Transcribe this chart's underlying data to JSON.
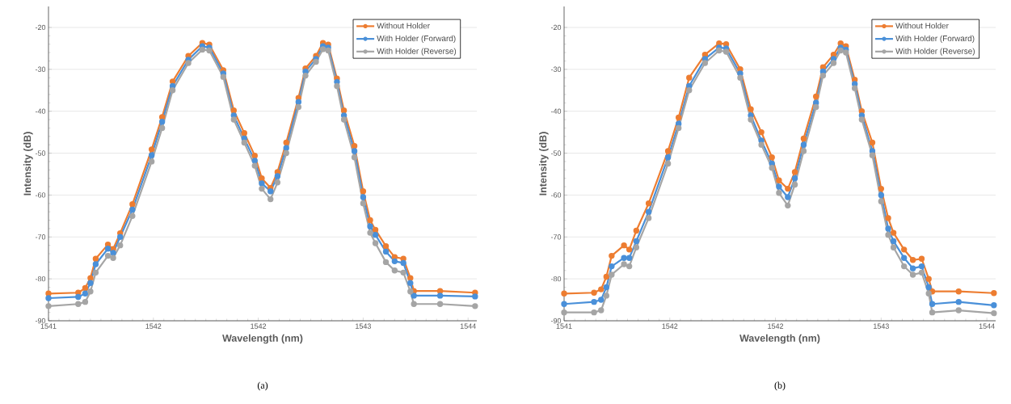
{
  "chart_data": [
    {
      "type": "line",
      "xlabel": "Wavelength (nm)",
      "ylabel": "Intensity (dB)",
      "annotations": [
        "(a)"
      ],
      "x": [
        1541.2,
        1541.37,
        1541.41,
        1541.44,
        1541.47,
        1541.54,
        1541.57,
        1541.61,
        1541.68,
        1541.79,
        1541.85,
        1541.91,
        1542.0,
        1542.08,
        1542.12,
        1542.2,
        1542.26,
        1542.32,
        1542.38,
        1542.42,
        1542.47,
        1542.51,
        1542.56,
        1542.63,
        1542.67,
        1542.73,
        1542.77,
        1542.8,
        1542.85,
        1542.89,
        1542.95,
        1543.0,
        1543.04,
        1543.07,
        1543.13,
        1543.18,
        1543.23,
        1543.27,
        1543.29,
        1543.44,
        1543.64
      ],
      "series": [
        {
          "name": "Without Holder",
          "color": "#ed7d31",
          "values": [
            -83.5,
            -83.3,
            -82.2,
            -79.8,
            -75.2,
            -71.8,
            -72.9,
            -69.1,
            -62.2,
            -49.1,
            -41.4,
            -32.9,
            -26.8,
            -23.7,
            -24.1,
            -30.2,
            -39.8,
            -45.2,
            -50.6,
            -56,
            -58.3,
            -54.5,
            -47.5,
            -36.8,
            -29.8,
            -26.8,
            -23.7,
            -24.1,
            -32.2,
            -39.8,
            -48.3,
            -59.1,
            -66,
            -68.3,
            -72.2,
            -74.8,
            -75.2,
            -79.8,
            -82.9,
            -82.9,
            -83.3
          ]
        },
        {
          "name": "With Holder (Forward)",
          "color": "#4a90d9",
          "values": [
            -84.6,
            -84.3,
            -83.5,
            -81,
            -76.5,
            -72.8,
            -73.8,
            -70,
            -63.5,
            -50.5,
            -42.5,
            -34,
            -27.7,
            -24.5,
            -24.8,
            -31,
            -41,
            -46.5,
            -51.8,
            -57.2,
            -59.1,
            -55.5,
            -48.8,
            -37.8,
            -30.5,
            -27.5,
            -24.5,
            -24.8,
            -33,
            -41,
            -49.5,
            -60.5,
            -67.5,
            -69.5,
            -73.5,
            -75.8,
            -76.2,
            -81,
            -84,
            -84,
            -84.2
          ]
        },
        {
          "name": "With Holder (Reverse)",
          "color": "#a5a5a5",
          "values": [
            -86.5,
            -86,
            -85.5,
            -83,
            -78.5,
            -74.5,
            -75,
            -72,
            -65,
            -52,
            -44,
            -35,
            -28.5,
            -25.3,
            -25.5,
            -31.8,
            -42,
            -47.5,
            -53,
            -58.5,
            -61,
            -57,
            -50,
            -39,
            -31.5,
            -28.2,
            -25.2,
            -25.5,
            -34,
            -42,
            -51,
            -62,
            -69,
            -71.5,
            -76,
            -78,
            -78.5,
            -83,
            -86,
            -86,
            -86.5
          ]
        }
      ],
      "xlim": [
        1541.2,
        1543.65
      ],
      "ylim": [
        -90,
        -15
      ],
      "xticks": [
        {
          "value": 1541.2,
          "label": "1541"
        },
        {
          "value": 1541.8,
          "label": "1542"
        },
        {
          "value": 1542.4,
          "label": "1542"
        },
        {
          "value": 1543.0,
          "label": "1543"
        },
        {
          "value": 1543.6,
          "label": "1544"
        }
      ],
      "yticks": [
        -90,
        -80,
        -70,
        -60,
        -50,
        -40,
        -30,
        -20
      ],
      "grid": "y",
      "legend": "top right",
      "marker": "circle",
      "line_style": "solid"
    },
    {
      "type": "line",
      "xlabel": "Wavelength (nm)",
      "ylabel": "Intensity (dB)",
      "annotations": [
        "(b)"
      ],
      "x": [
        1541.2,
        1541.37,
        1541.41,
        1541.44,
        1541.47,
        1541.54,
        1541.57,
        1541.61,
        1541.68,
        1541.79,
        1541.85,
        1541.91,
        1542.0,
        1542.08,
        1542.12,
        1542.2,
        1542.26,
        1542.32,
        1542.38,
        1542.42,
        1542.47,
        1542.51,
        1542.56,
        1542.63,
        1542.67,
        1542.73,
        1542.77,
        1542.8,
        1542.85,
        1542.89,
        1542.95,
        1543.0,
        1543.04,
        1543.07,
        1543.13,
        1543.18,
        1543.23,
        1543.27,
        1543.29,
        1543.44,
        1543.64
      ],
      "series": [
        {
          "name": "Without Holder",
          "color": "#ed7d31",
          "values": [
            -83.5,
            -83.3,
            -82.5,
            -79.5,
            -74.5,
            -72,
            -73,
            -68.5,
            -62,
            -49.5,
            -41.5,
            -32,
            -26.5,
            -23.8,
            -24,
            -30,
            -39.5,
            -45,
            -51,
            -56.5,
            -58.5,
            -54.5,
            -46.5,
            -36.5,
            -29.5,
            -26.5,
            -23.8,
            -24.5,
            -32.5,
            -40,
            -47.5,
            -58.5,
            -65.5,
            -69,
            -73,
            -75.5,
            -75.2,
            -80,
            -83,
            -83,
            -83.4
          ]
        },
        {
          "name": "With Holder (Forward)",
          "color": "#4a90d9",
          "values": [
            -86,
            -85.5,
            -85,
            -82,
            -77,
            -75,
            -75,
            -71,
            -64,
            -51,
            -43,
            -34,
            -27.5,
            -24.8,
            -25,
            -31,
            -41,
            -47,
            -52.5,
            -58,
            -60.5,
            -56,
            -48,
            -38,
            -30.5,
            -27.5,
            -24.8,
            -25.3,
            -33.5,
            -41,
            -49.5,
            -60,
            -68,
            -71,
            -75,
            -77.5,
            -77,
            -82,
            -86,
            -85.5,
            -86.3
          ]
        },
        {
          "name": "With Holder (Reverse)",
          "color": "#a5a5a5",
          "values": [
            -88,
            -88,
            -87.5,
            -84,
            -79,
            -76.5,
            -77,
            -72.5,
            -65.5,
            -52.5,
            -44,
            -35,
            -28.5,
            -25.5,
            -25.8,
            -32,
            -42,
            -48,
            -53.5,
            -59.5,
            -62.5,
            -57.5,
            -49.5,
            -39,
            -31.5,
            -28.5,
            -25.5,
            -26,
            -34.5,
            -42,
            -50.5,
            -61.5,
            -69.5,
            -72.5,
            -77,
            -79,
            -78.5,
            -83.5,
            -88,
            -87.5,
            -88.2
          ]
        }
      ],
      "xlim": [
        1541.2,
        1543.65
      ],
      "ylim": [
        -90,
        -15
      ],
      "xticks": [
        {
          "value": 1541.2,
          "label": "1541"
        },
        {
          "value": 1541.8,
          "label": "1542"
        },
        {
          "value": 1542.4,
          "label": "1542"
        },
        {
          "value": 1543.0,
          "label": "1543"
        },
        {
          "value": 1543.6,
          "label": "1544"
        }
      ],
      "yticks": [
        -90,
        -80,
        -70,
        -60,
        -50,
        -40,
        -30,
        -20
      ],
      "grid": "y",
      "legend": "top right",
      "marker": "circle",
      "line_style": "solid"
    }
  ]
}
